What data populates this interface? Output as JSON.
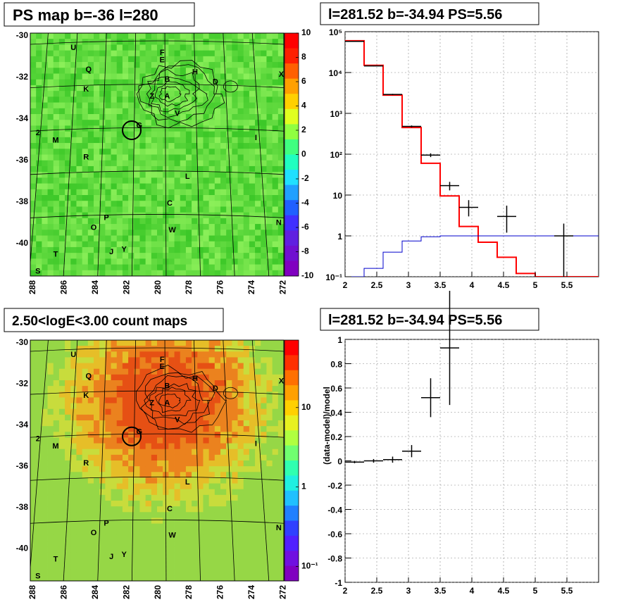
{
  "panels": {
    "top_left_title": "PS map b=-36 l=280",
    "top_right_title": "l=281.52 b=-34.94 PS=5.56",
    "bottom_left_title": "2.50<logE<3.00 count maps",
    "bottom_right_title": "l=281.52 b=-34.94 PS=5.56"
  },
  "maps": {
    "lon_ticks": [
      "288",
      "286",
      "284",
      "282",
      "280",
      "278",
      "276",
      "274",
      "272"
    ],
    "lat_ticks": [
      "-30",
      "-32",
      "-34",
      "-36",
      "-38",
      "-40"
    ],
    "ps_colorbar_ticks": [
      "10",
      "8",
      "6",
      "4",
      "2",
      "0",
      "-2",
      "-4",
      "-6",
      "-8",
      "-10"
    ],
    "count_colorbar_ticks": [
      "10",
      "1",
      "10⁻¹"
    ],
    "source_labels": [
      "U",
      "Q",
      "K",
      "2",
      "M",
      "R",
      "T",
      "S",
      "O",
      "P",
      "J",
      "Y",
      "C",
      "W",
      "L",
      "N",
      "I",
      "X",
      "D",
      "H",
      "E",
      "B",
      "Z",
      "A",
      "F",
      "V",
      "G"
    ]
  },
  "chart_data": [
    {
      "type": "histogram-log",
      "title": "l=281.52 b=-34.94 PS=5.56",
      "xlabel": "",
      "ylabel": "",
      "xlim": [
        2,
        6
      ],
      "ylim": [
        0.1,
        100000
      ],
      "yscale": "log",
      "x_ticks": [
        "2",
        "2.5",
        "3",
        "3.5",
        "4",
        "4.5",
        "5",
        "5.5"
      ],
      "y_ticks": [
        "10⁻¹",
        "1",
        "10",
        "10²",
        "10³",
        "10⁴",
        "10⁵"
      ],
      "bin_edges": [
        2.0,
        2.3,
        2.6,
        2.9,
        3.2,
        3.5,
        3.8,
        4.1,
        4.4,
        4.7,
        5.0,
        5.3,
        6.0
      ],
      "series": [
        {
          "role": "model-total",
          "color": "#ff0000",
          "values": [
            60000,
            15000,
            2800,
            450,
            60,
            9.5,
            1.7,
            0.7,
            0.3,
            0.12,
            0.1,
            0.1
          ]
        },
        {
          "role": "model-source",
          "color": "#0000cc",
          "values": [
            0.09,
            0.16,
            0.4,
            0.75,
            0.95,
            1.0,
            1.0,
            1.0,
            1.0,
            1.0,
            1.0,
            1.0
          ]
        },
        {
          "role": "data",
          "color": "#000000",
          "points": [
            {
              "x": 2.15,
              "y": 58000,
              "xerr": 0.15,
              "lo": 57000,
              "hi": 59000
            },
            {
              "x": 2.45,
              "y": 14500,
              "xerr": 0.15,
              "lo": 14200,
              "hi": 14800
            },
            {
              "x": 2.75,
              "y": 2900,
              "xerr": 0.15,
              "lo": 2800,
              "hi": 3000
            },
            {
              "x": 3.05,
              "y": 480,
              "xerr": 0.15,
              "lo": 455,
              "hi": 505
            },
            {
              "x": 3.35,
              "y": 95,
              "xerr": 0.15,
              "lo": 85,
              "hi": 105
            },
            {
              "x": 3.65,
              "y": 17,
              "xerr": 0.15,
              "lo": 13,
              "hi": 21
            },
            {
              "x": 3.95,
              "y": 5,
              "xerr": 0.15,
              "lo": 3,
              "hi": 7.5
            },
            {
              "x": 4.55,
              "y": 3,
              "xerr": 0.15,
              "lo": 1.2,
              "hi": 5.5
            },
            {
              "x": 5.45,
              "y": 1,
              "xerr": 0.15,
              "lo": 0.1,
              "hi": 2
            }
          ]
        }
      ]
    },
    {
      "type": "scatter-errorbars",
      "title": "l=281.52 b=-34.94 PS=5.56",
      "xlabel": "",
      "ylabel": "(data-model)/model",
      "xlim": [
        2,
        6
      ],
      "ylim": [
        -1,
        1
      ],
      "x_ticks": [
        "2",
        "2.5",
        "3",
        "3.5",
        "4",
        "4.5",
        "5",
        "5.5"
      ],
      "y_ticks": [
        "-1",
        "-0.8",
        "-0.6",
        "-0.4",
        "-0.2",
        "0",
        "0.2",
        "0.4",
        "0.6",
        "0.8",
        "1"
      ],
      "points": [
        {
          "x": 2.15,
          "y": -0.01,
          "xerr": 0.15,
          "yerr": 0.01
        },
        {
          "x": 2.45,
          "y": 0.0,
          "xerr": 0.15,
          "yerr": 0.015
        },
        {
          "x": 2.75,
          "y": 0.01,
          "xerr": 0.15,
          "yerr": 0.025
        },
        {
          "x": 3.05,
          "y": 0.08,
          "xerr": 0.15,
          "yerr": 0.05
        },
        {
          "x": 3.35,
          "y": 0.52,
          "xerr": 0.15,
          "yerr": 0.16
        },
        {
          "x": 3.65,
          "y": 0.93,
          "xerr": 0.15,
          "yerr": 0.47
        }
      ]
    }
  ]
}
